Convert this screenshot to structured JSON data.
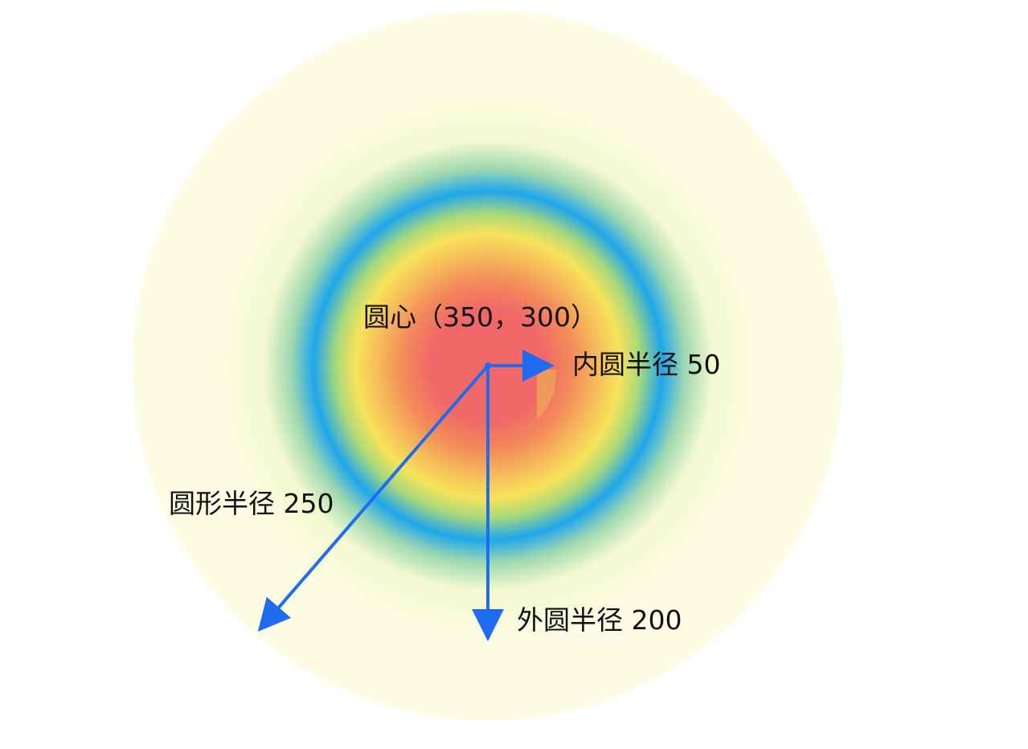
{
  "labels": {
    "center": "圆心（350，300）",
    "inner_radius": "内圆半径 50",
    "circle_radius": "圆形半径 250",
    "outer_radius": "外圆半径 200"
  },
  "colors": {
    "background": "#ffffff",
    "outer_fill": "#fdfde6",
    "arrow": "#1f6cf0",
    "gradient_stops": [
      "#f06868",
      "#f06868",
      "#f5a050",
      "#f7e35a",
      "#8ed68a",
      "#1fa6ec",
      "#b8e8a8",
      "#fdfde6"
    ]
  }
}
